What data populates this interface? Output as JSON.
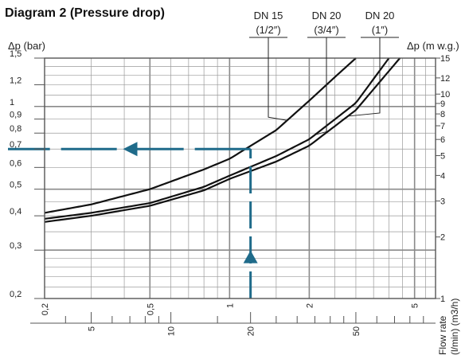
{
  "chart_data": {
    "type": "line",
    "title": "Diagram 2 (Pressure drop)",
    "y_left_label": "Δp (bar)",
    "y_right_label": "Δp (m w.g.)",
    "x_label_lines": [
      "Flow rate",
      "(l/min) (m3/h)"
    ],
    "x_scale": "log",
    "y_scale": "log",
    "x_range_m3h": [
      0.2,
      6.0
    ],
    "y_range_bar": [
      0.2,
      1.5
    ],
    "grid": true,
    "left_ticks": [
      "0,2",
      "0,3",
      "0,4",
      "0,5",
      "0,6",
      "0,7",
      "0,8",
      "0,9",
      "1",
      "1,2",
      "1,5"
    ],
    "left_tick_values": [
      0.2,
      0.3,
      0.4,
      0.5,
      0.6,
      0.7,
      0.8,
      0.9,
      1.0,
      1.2,
      1.5
    ],
    "right_ticks": [
      "1",
      "2",
      "3",
      "4",
      "5",
      "6",
      "7",
      "8",
      "9",
      "10",
      "12",
      "15"
    ],
    "right_tick_values": [
      1,
      2,
      3,
      4,
      5,
      6,
      7,
      8,
      9,
      10,
      12,
      15
    ],
    "x_ticks_m3h": [
      "0,2",
      "0,5",
      "1",
      "2",
      "5"
    ],
    "x_tick_values_m3h": [
      0.2,
      0.5,
      1,
      2,
      5
    ],
    "x_ticks_lmin": [
      "5",
      "10",
      "20",
      "50"
    ],
    "x_tick_values_lmin": [
      5,
      10,
      20,
      50
    ],
    "series": [
      {
        "name": "DN 15 (1/2″)",
        "name_lines": [
          "DN 15",
          "(1/2″)"
        ],
        "x": [
          0.2,
          0.3,
          0.5,
          0.8,
          1.0,
          1.5,
          2.0,
          2.5,
          3.0
        ],
        "y": [
          0.41,
          0.44,
          0.5,
          0.59,
          0.645,
          0.82,
          1.05,
          1.28,
          1.5
        ]
      },
      {
        "name": "DN 20 (3/4″)",
        "name_lines": [
          "DN 20",
          "(3/4″)"
        ],
        "x": [
          0.2,
          0.3,
          0.5,
          0.8,
          1.0,
          1.5,
          2.0,
          3.0,
          4.0
        ],
        "y": [
          0.39,
          0.41,
          0.445,
          0.51,
          0.56,
          0.66,
          0.76,
          1.03,
          1.5
        ]
      },
      {
        "name": "DN 20 (1″)",
        "name_lines": [
          "DN 20",
          "(1″)"
        ],
        "x": [
          0.2,
          0.3,
          0.5,
          0.8,
          1.0,
          1.5,
          2.0,
          3.0,
          4.4
        ],
        "y": [
          0.38,
          0.4,
          0.435,
          0.495,
          0.545,
          0.63,
          0.72,
          0.97,
          1.5
        ]
      }
    ],
    "reading_example": {
      "x_m3h": 1.2,
      "y_bar": 0.7
    },
    "colors": {
      "curve": "#111111",
      "grid": "#9a9a9a",
      "grid_major": "#8a8a8a",
      "guide": "#1f6b8a"
    }
  }
}
